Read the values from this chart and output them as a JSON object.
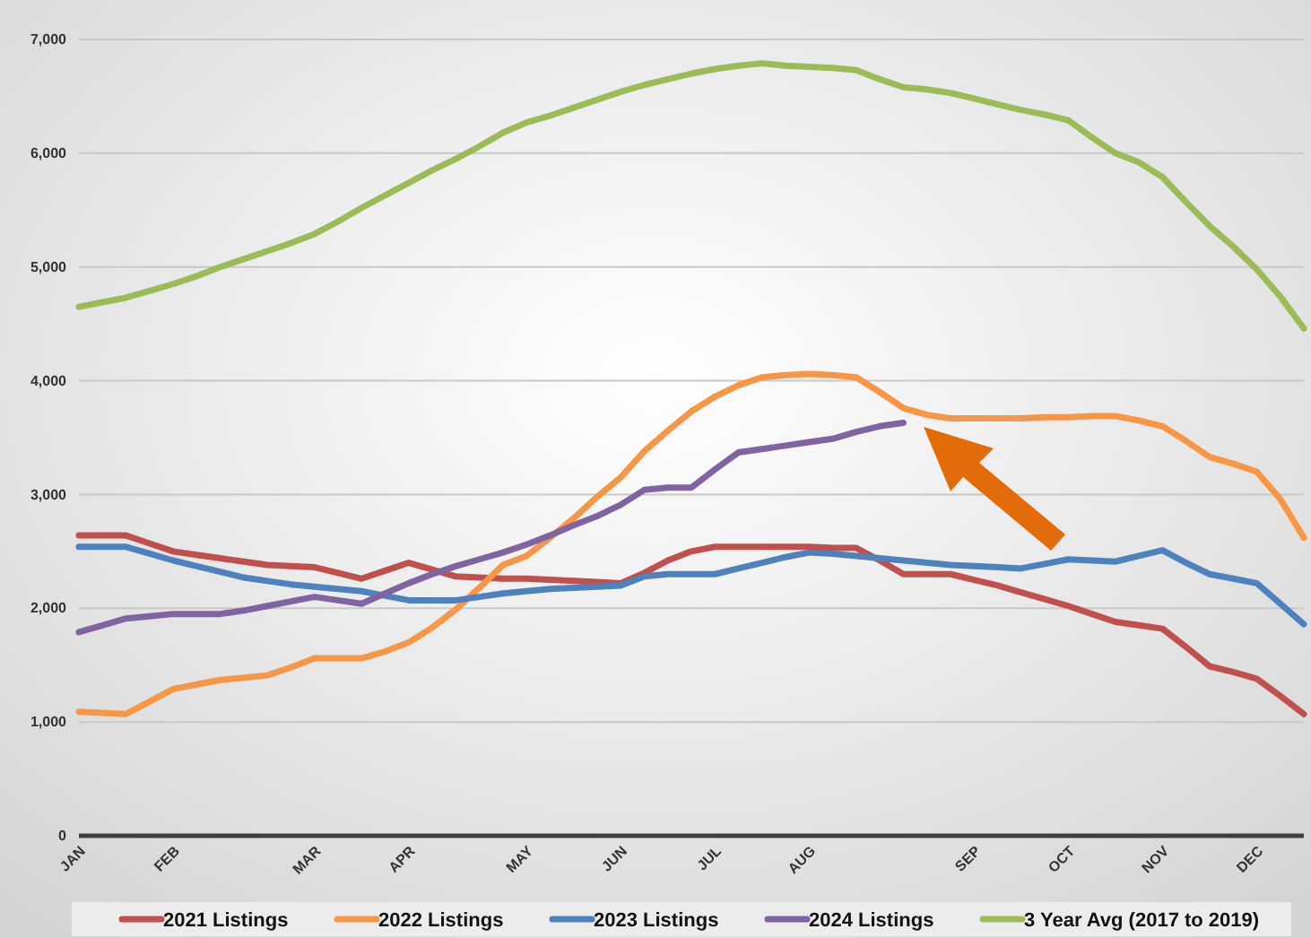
{
  "chart_data": {
    "type": "line",
    "categories": [
      "JAN",
      null,
      null,
      null,
      "FEB",
      null,
      null,
      null,
      null,
      null,
      "MAR",
      null,
      null,
      null,
      "APR",
      null,
      null,
      null,
      null,
      "MAY",
      null,
      null,
      null,
      "JUN",
      null,
      null,
      null,
      "JUL",
      null,
      null,
      null,
      "AUG",
      null,
      null,
      null,
      null,
      null,
      null,
      "SEP",
      null,
      null,
      null,
      "OCT",
      null,
      null,
      null,
      "NOV",
      null,
      null,
      null,
      "DEC",
      null,
      null
    ],
    "ylim": [
      0,
      7000
    ],
    "yticks": [
      {
        "value": 0,
        "label": "0"
      },
      {
        "value": 1000,
        "label": "1,000"
      },
      {
        "value": 2000,
        "label": "2,000"
      },
      {
        "value": 3000,
        "label": "3,000"
      },
      {
        "value": 4000,
        "label": "4,000"
      },
      {
        "value": 5000,
        "label": "5,000"
      },
      {
        "value": 6000,
        "label": "6,000"
      },
      {
        "value": 7000,
        "label": "7,000"
      }
    ],
    "grid": "y",
    "legend": "bottom",
    "marker": "none",
    "line_style": "solid",
    "series": [
      {
        "name": "2021 Listings",
        "color": "#c0504d",
        "values": [
          2640,
          2640,
          2640,
          2570,
          2500,
          2470,
          2440,
          2410,
          2380,
          2370,
          2360,
          2310,
          2260,
          2330,
          2400,
          2340,
          2280,
          2270,
          2260,
          2260,
          2250,
          2240,
          2230,
          2220,
          2310,
          2420,
          2500,
          2540,
          2540,
          2540,
          2540,
          2540,
          2530,
          2530,
          2420,
          2300,
          2300,
          2300,
          2250,
          2200,
          2140,
          2080,
          2020,
          1950,
          1880,
          1850,
          1820,
          1660,
          1490,
          1440,
          1380,
          1230,
          1070
        ]
      },
      {
        "name": "2022 Listings",
        "color": "#f79646",
        "values": [
          1090,
          1080,
          1070,
          1180,
          1290,
          1330,
          1370,
          1390,
          1410,
          1480,
          1560,
          1560,
          1560,
          1620,
          1700,
          1830,
          1990,
          2180,
          2380,
          2460,
          2620,
          2790,
          2980,
          3150,
          3380,
          3560,
          3730,
          3860,
          3960,
          4030,
          4050,
          4060,
          4050,
          4030,
          3900,
          3760,
          3700,
          3670,
          3670,
          3670,
          3670,
          3680,
          3680,
          3690,
          3690,
          3650,
          3600,
          3470,
          3330,
          3270,
          3200,
          2960,
          2620
        ]
      },
      {
        "name": "2023 Listings",
        "color": "#4f81bd",
        "values": [
          2540,
          2540,
          2540,
          2480,
          2420,
          2370,
          2320,
          2270,
          2240,
          2210,
          2190,
          2170,
          2150,
          2110,
          2070,
          2070,
          2070,
          2100,
          2130,
          2150,
          2170,
          2180,
          2190,
          2200,
          2280,
          2300,
          2300,
          2300,
          2350,
          2400,
          2450,
          2490,
          2480,
          2460,
          2440,
          2420,
          2400,
          2380,
          2370,
          2360,
          2350,
          2390,
          2430,
          2420,
          2410,
          2460,
          2510,
          2400,
          2300,
          2260,
          2220,
          2040,
          1860
        ]
      },
      {
        "name": "2024 Listings",
        "color": "#8064a2",
        "values": [
          1790,
          1850,
          1910,
          1930,
          1950,
          1950,
          1950,
          1980,
          2020,
          2060,
          2100,
          2070,
          2040,
          2130,
          2220,
          2300,
          2370,
          2430,
          2490,
          2560,
          2640,
          2730,
          2810,
          2910,
          3040,
          3060,
          3060,
          3220,
          3370,
          3400,
          3430,
          3460,
          3490,
          3550,
          3600,
          3630,
          null,
          null,
          null,
          null,
          null,
          null,
          null,
          null,
          null,
          null,
          null,
          null,
          null,
          null,
          null,
          null,
          null
        ]
      },
      {
        "name": "3 Year Avg (2017 to 2019)",
        "color": "#9bbb59",
        "values": [
          4650,
          4690,
          4730,
          4790,
          4850,
          4920,
          5000,
          5070,
          5140,
          5210,
          5290,
          5400,
          5520,
          5630,
          5740,
          5850,
          5950,
          6060,
          6180,
          6270,
          6330,
          6400,
          6470,
          6540,
          6600,
          6650,
          6700,
          6740,
          6770,
          6790,
          6770,
          6760,
          6750,
          6730,
          6650,
          6580,
          6560,
          6530,
          6480,
          6430,
          6380,
          6340,
          6290,
          6140,
          6000,
          5920,
          5790,
          5570,
          5360,
          5180,
          4980,
          4740,
          4460
        ]
      }
    ]
  }
}
